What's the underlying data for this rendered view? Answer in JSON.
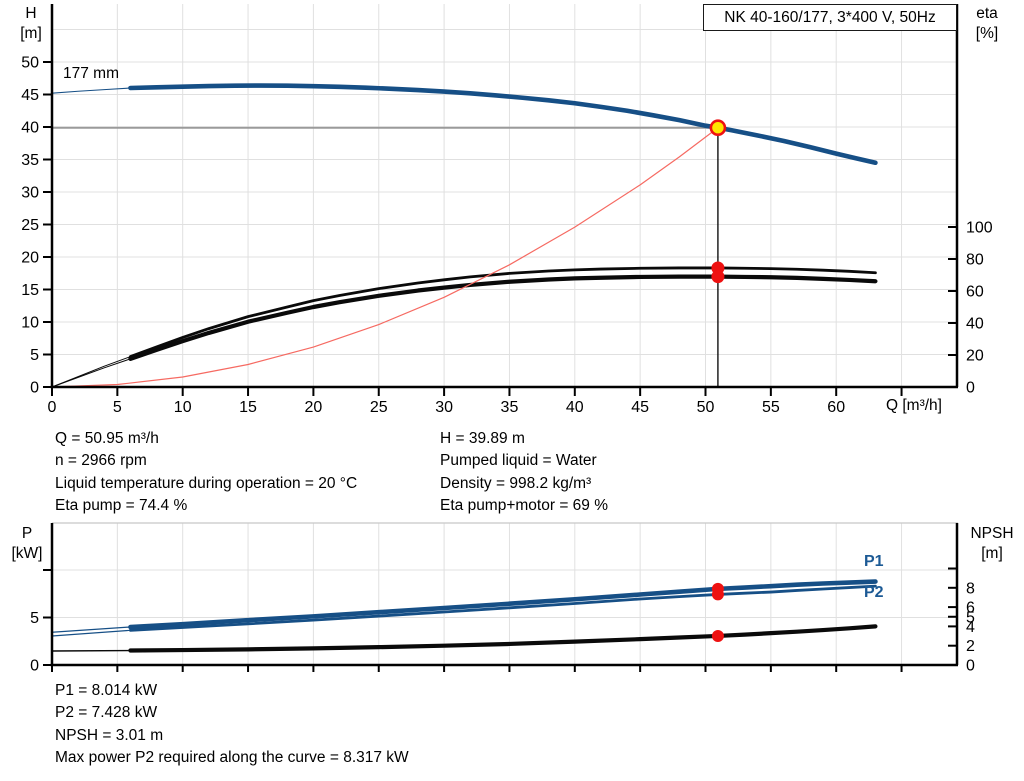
{
  "title_box": {
    "label": "NK 40-160/177, 3*400 V, 50Hz"
  },
  "axis_labels": {
    "c1_left1": "H",
    "c1_left2": "[m]",
    "c1_right1": "eta",
    "c1_right2": "[%]",
    "c1_x": "Q [m³/h]",
    "c2_left1": "P",
    "c2_left2": "[kW]",
    "c2_right1": "NPSH",
    "c2_right2": "[m]"
  },
  "labels": {
    "impeller": "177 mm",
    "p1": "P1",
    "p2": "P2"
  },
  "info_top_left": [
    "Q = 50.95 m³/h",
    "n = 2966 rpm",
    "Liquid temperature during operation = 20 °C",
    "Eta pump = 74.4 %"
  ],
  "info_top_right": [
    "H = 39.89 m",
    "Pumped liquid = Water",
    "Density = 998.2 kg/m³",
    "Eta pump+motor = 69 %"
  ],
  "info_bottom": [
    "P1 = 8.014 kW",
    "P2 = 7.428 kW",
    "NPSH = 3.01 m",
    "Max power P2 required along the curve = 8.317 kW"
  ],
  "colors": {
    "curve_blue": "#164f86",
    "curve_black": "#0a0a0a",
    "system_red": "#f66a62",
    "marker_red": "#ee1111",
    "marker_yellow": "#ffe600",
    "grid": "#e0e0e0",
    "axis": "#000000",
    "ref_gray": "#9a9a9a",
    "frame_light": "#c8c8c8",
    "label_blue": "#1c5a95"
  },
  "chart_data": [
    {
      "type": "line",
      "title": "NK 40-160/177, 3*400 V, 50Hz",
      "xlabel": "Q [m³/h]",
      "ylabel_left": "H [m]",
      "ylabel_right": "eta [%]",
      "x_range": [
        0,
        69.3
      ],
      "h_axis_range": [
        0,
        58.9
      ],
      "eta_axis_range": [
        0,
        100
      ],
      "x_ticks": [
        0,
        5,
        10,
        15,
        20,
        25,
        30,
        35,
        40,
        45,
        50,
        55,
        60,
        65
      ],
      "x_tick_labels": [
        "0",
        "5",
        "10",
        "15",
        "20",
        "25",
        "30",
        "35",
        "40",
        "45",
        "50",
        "55",
        "60",
        ""
      ],
      "h_ticks": [
        0,
        5,
        10,
        15,
        20,
        25,
        30,
        35,
        40,
        45,
        50
      ],
      "h_gridlines": [
        5,
        10,
        15,
        20,
        25,
        30,
        35,
        40,
        45,
        50,
        55
      ],
      "eta_ticks": [
        0,
        20,
        40,
        60,
        80,
        100
      ],
      "grid": true,
      "legend_position": "none",
      "operating_point": {
        "q": 50.95,
        "h": 39.89
      },
      "eta_marker_values": [
        74.4,
        69
      ],
      "series": [
        {
          "name": "head-177mm",
          "axis": "h",
          "color": "curve_blue",
          "split_q": 6,
          "points": [
            [
              0,
              45.2
            ],
            [
              2,
              45.5
            ],
            [
              4,
              45.75
            ],
            [
              6,
              46.0
            ],
            [
              8,
              46.1
            ],
            [
              10,
              46.2
            ],
            [
              12,
              46.3
            ],
            [
              14,
              46.35
            ],
            [
              16,
              46.38
            ],
            [
              18,
              46.35
            ],
            [
              20,
              46.28
            ],
            [
              22,
              46.18
            ],
            [
              24,
              46.05
            ],
            [
              26,
              45.88
            ],
            [
              28,
              45.68
            ],
            [
              30,
              45.45
            ],
            [
              32,
              45.18
            ],
            [
              34,
              44.85
            ],
            [
              36,
              44.5
            ],
            [
              38,
              44.1
            ],
            [
              40,
              43.65
            ],
            [
              42,
              43.1
            ],
            [
              44,
              42.5
            ],
            [
              46,
              41.8
            ],
            [
              48,
              41.05
            ],
            [
              50,
              40.2
            ],
            [
              50.95,
              39.89
            ],
            [
              52,
              39.5
            ],
            [
              54,
              38.7
            ],
            [
              56,
              37.85
            ],
            [
              58,
              36.9
            ],
            [
              60,
              35.9
            ],
            [
              61.5,
              35.2
            ],
            [
              63,
              34.5
            ]
          ]
        },
        {
          "name": "eta-pump",
          "axis": "eta",
          "color": "curve_black",
          "split_q": 6,
          "points": [
            [
              0,
              0
            ],
            [
              2,
              6.5
            ],
            [
              4,
              13
            ],
            [
              6,
              19
            ],
            [
              8,
              25
            ],
            [
              10,
              31
            ],
            [
              12,
              36.5
            ],
            [
              15,
              44
            ],
            [
              18,
              50
            ],
            [
              20,
              54
            ],
            [
              22,
              57.2
            ],
            [
              25,
              61.5
            ],
            [
              28,
              65
            ],
            [
              30,
              67
            ],
            [
              32,
              68.8
            ],
            [
              35,
              71
            ],
            [
              38,
              72.5
            ],
            [
              40,
              73.2
            ],
            [
              42,
              73.7
            ],
            [
              45,
              74.2
            ],
            [
              48,
              74.4
            ],
            [
              50.95,
              74.4
            ],
            [
              53,
              74.2
            ],
            [
              55,
              74
            ],
            [
              57,
              73.6
            ],
            [
              59,
              73
            ],
            [
              61,
              72.3
            ],
            [
              63,
              71.4
            ]
          ]
        },
        {
          "name": "eta-pump-motor",
          "axis": "eta",
          "color": "curve_black",
          "split_q": 6,
          "points": [
            [
              0,
              0
            ],
            [
              2,
              6
            ],
            [
              4,
              12
            ],
            [
              6,
              17.6
            ],
            [
              8,
              23.2
            ],
            [
              10,
              28.7
            ],
            [
              12,
              33.8
            ],
            [
              15,
              40.8
            ],
            [
              18,
              46.4
            ],
            [
              20,
              50
            ],
            [
              22,
              53
            ],
            [
              25,
              57
            ],
            [
              28,
              60.3
            ],
            [
              30,
              62.1
            ],
            [
              32,
              63.8
            ],
            [
              35,
              65.8
            ],
            [
              38,
              67.2
            ],
            [
              40,
              67.9
            ],
            [
              42,
              68.3
            ],
            [
              45,
              68.8
            ],
            [
              48,
              69
            ],
            [
              50.95,
              69
            ],
            [
              53,
              68.8
            ],
            [
              55,
              68.6
            ],
            [
              57,
              68.2
            ],
            [
              59,
              67.6
            ],
            [
              61,
              66.9
            ],
            [
              63,
              66.1
            ]
          ]
        },
        {
          "name": "system-curve",
          "axis": "h",
          "color": "system_red",
          "split_q": 999,
          "points": [
            [
              0,
              0
            ],
            [
              5,
              0.38
            ],
            [
              10,
              1.54
            ],
            [
              15,
              3.46
            ],
            [
              20,
              6.15
            ],
            [
              25,
              9.6
            ],
            [
              30,
              13.8
            ],
            [
              35,
              18.8
            ],
            [
              40,
              24.6
            ],
            [
              45,
              31.1
            ],
            [
              48,
              35.4
            ],
            [
              50.95,
              39.89
            ]
          ]
        }
      ]
    },
    {
      "type": "line",
      "xlabel": "",
      "ylabel_left": "P [kW]",
      "ylabel_right": "NPSH [m]",
      "x_range": [
        0,
        69.3
      ],
      "p_axis_range": [
        0,
        15
      ],
      "npsh_axis_range": [
        0,
        14.7
      ],
      "x_ticks": [
        0,
        5,
        10,
        15,
        20,
        25,
        30,
        35,
        40,
        45,
        50,
        55,
        60,
        65
      ],
      "p_ticks": [
        {
          "v": 0,
          "l": "0"
        },
        {
          "v": 5,
          "l": "5"
        },
        {
          "v": 10,
          "l": ""
        }
      ],
      "npsh_ticks": [
        {
          "v": 0,
          "l": "0"
        },
        {
          "v": 2,
          "l": "2"
        },
        {
          "v": 4,
          "l": "4"
        },
        {
          "v": 5,
          "l": "5"
        },
        {
          "v": 6,
          "l": "6"
        },
        {
          "v": 8,
          "l": "8"
        },
        {
          "v": 10,
          "l": ""
        }
      ],
      "p_gridlines": [
        5,
        10
      ],
      "grid": true,
      "marker_values": {
        "p1": 8.014,
        "p2": 7.428,
        "npsh": 3.01,
        "q": 50.95
      },
      "series": [
        {
          "name": "p1",
          "axis": "p",
          "color": "curve_blue",
          "split_q": 6,
          "points": [
            [
              0,
              3.45
            ],
            [
              6,
              4.0
            ],
            [
              10,
              4.3
            ],
            [
              15,
              4.72
            ],
            [
              20,
              5.12
            ],
            [
              25,
              5.56
            ],
            [
              30,
              6.0
            ],
            [
              35,
              6.45
            ],
            [
              40,
              6.92
            ],
            [
              45,
              7.42
            ],
            [
              48,
              7.72
            ],
            [
              50.95,
              8.014
            ],
            [
              53,
              8.15
            ],
            [
              55,
              8.3
            ],
            [
              57,
              8.45
            ],
            [
              59,
              8.58
            ],
            [
              61,
              8.68
            ],
            [
              63,
              8.78
            ]
          ]
        },
        {
          "name": "p2",
          "axis": "p",
          "color": "curve_blue",
          "split_q": 6,
          "points": [
            [
              0,
              3.05
            ],
            [
              6,
              3.65
            ],
            [
              10,
              3.95
            ],
            [
              15,
              4.33
            ],
            [
              20,
              4.72
            ],
            [
              25,
              5.15
            ],
            [
              30,
              5.58
            ],
            [
              35,
              6.02
            ],
            [
              40,
              6.47
            ],
            [
              45,
              6.95
            ],
            [
              48,
              7.2
            ],
            [
              50.95,
              7.428
            ],
            [
              53,
              7.56
            ],
            [
              55,
              7.68
            ],
            [
              57,
              7.85
            ],
            [
              59,
              8.0
            ],
            [
              61,
              8.15
            ],
            [
              63,
              8.3
            ]
          ]
        },
        {
          "name": "npsh",
          "axis": "npsh",
          "color": "curve_black",
          "split_q": 6,
          "points": [
            [
              0,
              1.45
            ],
            [
              6,
              1.5
            ],
            [
              10,
              1.55
            ],
            [
              15,
              1.62
            ],
            [
              20,
              1.72
            ],
            [
              25,
              1.85
            ],
            [
              30,
              2.0
            ],
            [
              35,
              2.18
            ],
            [
              40,
              2.42
            ],
            [
              45,
              2.68
            ],
            [
              48,
              2.85
            ],
            [
              50.95,
              3.01
            ],
            [
              53,
              3.15
            ],
            [
              55,
              3.3
            ],
            [
              57,
              3.45
            ],
            [
              59,
              3.62
            ],
            [
              61,
              3.8
            ],
            [
              63,
              4.0
            ]
          ]
        }
      ]
    }
  ]
}
